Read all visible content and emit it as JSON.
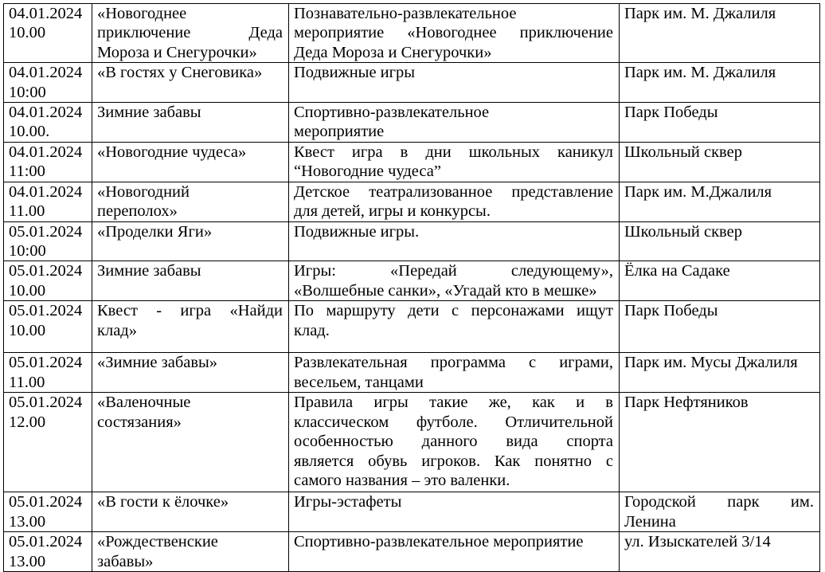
{
  "rows": [
    {
      "date": [
        "04.01.2024",
        " 10.00"
      ],
      "name": {
        "lines": [
          " «Новогоднее",
          "приключение Деда",
          "Мороза и Снегурочки»"
        ],
        "justify": true
      },
      "desc": {
        "lines": [
          "Познавательно-развлекательное",
          "мероприятие «Новогоднее приключение",
          "Деда Мороза и Снегурочки»"
        ],
        "justify": true
      },
      "place": {
        "lines": [
          "Парк им. М. Джалиля"
        ],
        "justify": false
      }
    },
    {
      "date": [
        "04.01.2024",
        "10:00"
      ],
      "name": {
        "lines": [
          "«В гостях у Снеговика»"
        ],
        "justify": false
      },
      "desc": {
        "lines": [
          "Подвижные игры"
        ],
        "justify": false
      },
      "place": {
        "lines": [
          "Парк им. М. Джалиля"
        ],
        "justify": false
      }
    },
    {
      "date": [
        "04.01.2024",
        "10.00."
      ],
      "name": {
        "lines": [
          "Зимние забавы"
        ],
        "justify": false
      },
      "desc": {
        "lines": [
          "Спортивно-развлекательное",
          "мероприятие"
        ],
        "justify": false
      },
      "place": {
        "lines": [
          "Парк Победы"
        ],
        "justify": false
      }
    },
    {
      "date": [
        "04.01.2024",
        "11:00"
      ],
      "name": {
        "lines": [
          "«Новогодние чудеса»"
        ],
        "justify": false
      },
      "desc": {
        "lines": [
          "Квест игра в дни школьных каникул",
          "“Новогодние чудеса”"
        ],
        "justify": true
      },
      "place": {
        "lines": [
          "Школьный сквер"
        ],
        "justify": false
      }
    },
    {
      "date": [
        "04.01.2024",
        "11.00"
      ],
      "name": {
        "lines": [
          "«Новогодний",
          "переполох»"
        ],
        "justify": false
      },
      "desc": {
        "lines": [
          "Детское театрализованное представление",
          "для детей, игры и конкурсы."
        ],
        "justify": true
      },
      "place": {
        "lines": [
          "Парк им. М.Джалиля"
        ],
        "justify": false
      }
    },
    {
      "date": [
        "05.01.2024",
        "10:00"
      ],
      "name": {
        "lines": [
          "«Проделки Яги»"
        ],
        "justify": false
      },
      "desc": {
        "lines": [
          "Подвижные игры."
        ],
        "justify": false
      },
      "place": {
        "lines": [
          "Школьный сквер"
        ],
        "justify": false
      }
    },
    {
      "date": [
        "05.01.2024",
        "10.00"
      ],
      "name": {
        "lines": [
          "Зимние забавы"
        ],
        "justify": false
      },
      "desc": {
        "lines": [
          "Игры: «Передай следующему»,",
          "«Волшебные санки», «Угадай кто в мешке»"
        ],
        "justify": true
      },
      "place": {
        "lines": [
          "Ёлка на Садаке"
        ],
        "justify": false
      }
    },
    {
      "date": [
        "05.01.2024",
        "10.00"
      ],
      "name": {
        "lines": [
          "Квест - игра «Найди",
          "клад»"
        ],
        "justify": true
      },
      "desc": {
        "lines": [
          "По маршруту дети с персонажами ищут",
          "клад."
        ],
        "justify": true
      },
      "place": {
        "lines": [
          "Парк Победы"
        ],
        "justify": false
      }
    },
    {
      "date": [
        "05.01.2024",
        "11.00"
      ],
      "name": {
        "lines": [
          "«Зимние забавы»"
        ],
        "justify": false
      },
      "desc": {
        "lines": [
          "Развлекательная программа с играми,",
          "весельем, танцами"
        ],
        "justify": true
      },
      "place": {
        "lines": [
          "Парк им. Мусы Джалиля"
        ],
        "justify": false
      }
    },
    {
      "date": [
        "05.01.2024",
        "12.00"
      ],
      "name": {
        "lines": [
          "«Валеночные",
          "состязания»"
        ],
        "justify": false
      },
      "desc": {
        "lines": [
          "Правила игры такие же, как и в",
          "классическом футболе. Отличительной",
          "особенностью данного вида спорта",
          "является обувь игроков. Как понятно с",
          "самого названия – это валенки."
        ],
        "justify": true
      },
      "place": {
        "lines": [
          "Парк Нефтяников"
        ],
        "justify": false
      }
    },
    {
      "date": [
        "05.01.2024",
        "13.00"
      ],
      "name": {
        "lines": [
          "«В гости к ёлочке»"
        ],
        "justify": false
      },
      "desc": {
        "lines": [
          "Игры-эстафеты"
        ],
        "justify": false
      },
      "place": {
        "lines": [
          "Городской парк им.",
          "Ленина"
        ],
        "justify": true
      }
    },
    {
      "date": [
        "05.01.2024",
        "13.00"
      ],
      "name": {
        "lines": [
          "«Рождественские",
          "забавы»"
        ],
        "justify": false
      },
      "desc": {
        "lines": [
          "Спортивно-развлекательное мероприятие"
        ],
        "justify": false
      },
      "place": {
        "lines": [
          "ул. Изыскателей 3/14"
        ],
        "justify": false
      }
    }
  ]
}
